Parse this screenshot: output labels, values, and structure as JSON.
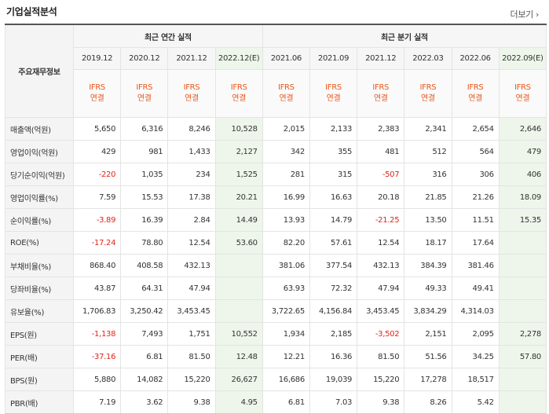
{
  "section_title": "기업실적분석",
  "more_link": "더보기",
  "more_icon": "chevron-right-icon",
  "row_header_label": "주요재무정보",
  "groups": {
    "annual": "최근 연간 실적",
    "quarterly": "최근 분기 실적"
  },
  "periods": [
    "2019.12",
    "2020.12",
    "2021.12",
    "2022.12(E)",
    "2021.06",
    "2021.09",
    "2021.12",
    "2022.03",
    "2022.06",
    "2022.09(E)"
  ],
  "ifrs_line1": "IFRS",
  "ifrs_line2": "연결",
  "accent_color": "#e8581d",
  "negative_color": "#e0241b",
  "estimate_bg": "#eef6ec",
  "rows": [
    {
      "label": "매출액(억원)",
      "values": [
        "5,650",
        "6,316",
        "8,246",
        "10,528",
        "2,015",
        "2,133",
        "2,383",
        "2,341",
        "2,654",
        "2,646"
      ]
    },
    {
      "label": "영업이익(억원)",
      "values": [
        "429",
        "981",
        "1,433",
        "2,127",
        "342",
        "355",
        "481",
        "512",
        "564",
        "479"
      ]
    },
    {
      "label": "당기순이익(억원)",
      "values": [
        "-220",
        "1,035",
        "234",
        "1,525",
        "281",
        "315",
        "-507",
        "316",
        "306",
        "406"
      ]
    },
    {
      "label": "영업이익률(%)",
      "values": [
        "7.59",
        "15.53",
        "17.38",
        "20.21",
        "16.99",
        "16.63",
        "20.18",
        "21.85",
        "21.26",
        "18.09"
      ]
    },
    {
      "label": "순이익률(%)",
      "values": [
        "-3.89",
        "16.39",
        "2.84",
        "14.49",
        "13.93",
        "14.79",
        "-21.25",
        "13.50",
        "11.51",
        "15.35"
      ]
    },
    {
      "label": "ROE(%)",
      "values": [
        "-17.24",
        "78.80",
        "12.54",
        "53.60",
        "82.20",
        "57.61",
        "12.54",
        "18.17",
        "17.64",
        ""
      ]
    },
    {
      "label": "부채비율(%)",
      "values": [
        "868.40",
        "408.58",
        "432.13",
        "",
        "381.06",
        "377.54",
        "432.13",
        "384.39",
        "381.46",
        ""
      ]
    },
    {
      "label": "당좌비율(%)",
      "values": [
        "43.87",
        "64.31",
        "47.94",
        "",
        "63.93",
        "72.32",
        "47.94",
        "49.33",
        "49.41",
        ""
      ]
    },
    {
      "label": "유보율(%)",
      "values": [
        "1,706.83",
        "3,250.42",
        "3,453.45",
        "",
        "3,722.65",
        "4,156.84",
        "3,453.45",
        "3,834.29",
        "4,314.03",
        ""
      ]
    },
    {
      "label": "EPS(원)",
      "values": [
        "-1,138",
        "7,493",
        "1,751",
        "10,552",
        "1,934",
        "2,185",
        "-3,502",
        "2,151",
        "2,095",
        "2,278"
      ]
    },
    {
      "label": "PER(배)",
      "values": [
        "-37.16",
        "6.81",
        "81.50",
        "12.48",
        "12.21",
        "16.36",
        "81.50",
        "51.56",
        "34.25",
        "57.80"
      ]
    },
    {
      "label": "BPS(원)",
      "values": [
        "5,880",
        "14,082",
        "15,220",
        "26,627",
        "16,686",
        "19,039",
        "15,220",
        "17,278",
        "18,517",
        ""
      ]
    },
    {
      "label": "PBR(배)",
      "values": [
        "7.19",
        "3.62",
        "9.38",
        "4.95",
        "6.81",
        "7.03",
        "9.38",
        "8.26",
        "5.42",
        ""
      ]
    }
  ]
}
